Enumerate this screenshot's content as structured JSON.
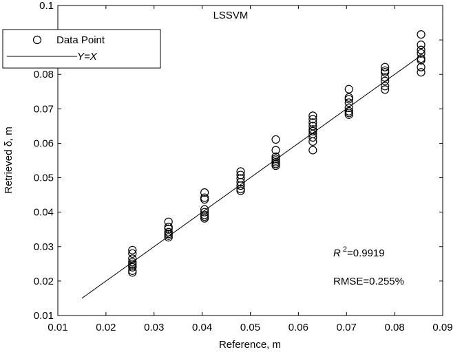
{
  "chart_data": {
    "type": "scatter",
    "title": "LSSVM",
    "xlabel": "Reference, m",
    "ylabel": "Retrieved δ, m",
    "xlim": [
      0.01,
      0.09
    ],
    "ylim": [
      0.01,
      0.1
    ],
    "x_ticks": [
      "0.01",
      "0.02",
      "0.03",
      "0.04",
      "0.05",
      "0.06",
      "0.07",
      "0.08",
      "0.09"
    ],
    "y_ticks": [
      "0.01",
      "0.02",
      "0.03",
      "0.04",
      "0.05",
      "0.06",
      "0.07",
      "0.08",
      "0.09",
      "0.1"
    ],
    "grid": false,
    "legend_position": "top-left",
    "legend": [
      {
        "label": "Data Point",
        "marker": "open-circle"
      },
      {
        "label": "Y=X",
        "marker": "line"
      }
    ],
    "series": [
      {
        "name": "Data Point",
        "points": [
          [
            0.0255,
            0.029
          ],
          [
            0.0255,
            0.028
          ],
          [
            0.0255,
            0.0265
          ],
          [
            0.0255,
            0.0255
          ],
          [
            0.0255,
            0.025
          ],
          [
            0.0255,
            0.0245
          ],
          [
            0.0255,
            0.024
          ],
          [
            0.0255,
            0.023
          ],
          [
            0.0255,
            0.0225
          ],
          [
            0.033,
            0.0372
          ],
          [
            0.033,
            0.0357
          ],
          [
            0.033,
            0.0352
          ],
          [
            0.033,
            0.0342
          ],
          [
            0.033,
            0.0337
          ],
          [
            0.033,
            0.0332
          ],
          [
            0.033,
            0.0327
          ],
          [
            0.0405,
            0.0457
          ],
          [
            0.0405,
            0.0442
          ],
          [
            0.0405,
            0.0437
          ],
          [
            0.0405,
            0.0408
          ],
          [
            0.0405,
            0.04
          ],
          [
            0.0405,
            0.0392
          ],
          [
            0.0405,
            0.0387
          ],
          [
            0.0405,
            0.0382
          ],
          [
            0.048,
            0.0518
          ],
          [
            0.048,
            0.0508
          ],
          [
            0.048,
            0.0498
          ],
          [
            0.048,
            0.0487
          ],
          [
            0.048,
            0.0477
          ],
          [
            0.048,
            0.0467
          ],
          [
            0.048,
            0.0462
          ],
          [
            0.0553,
            0.0611
          ],
          [
            0.0553,
            0.058
          ],
          [
            0.0553,
            0.0561
          ],
          [
            0.0553,
            0.0555
          ],
          [
            0.0553,
            0.055
          ],
          [
            0.0553,
            0.0545
          ],
          [
            0.0553,
            0.054
          ],
          [
            0.0553,
            0.0535
          ],
          [
            0.063,
            0.068
          ],
          [
            0.063,
            0.067
          ],
          [
            0.063,
            0.066
          ],
          [
            0.063,
            0.065
          ],
          [
            0.063,
            0.064
          ],
          [
            0.063,
            0.0635
          ],
          [
            0.063,
            0.0627
          ],
          [
            0.063,
            0.0617
          ],
          [
            0.063,
            0.0605
          ],
          [
            0.063,
            0.058
          ],
          [
            0.0705,
            0.0757
          ],
          [
            0.0705,
            0.0733
          ],
          [
            0.0705,
            0.0728
          ],
          [
            0.0705,
            0.0718
          ],
          [
            0.0705,
            0.0703
          ],
          [
            0.0705,
            0.0693
          ],
          [
            0.0705,
            0.0688
          ],
          [
            0.0705,
            0.0683
          ],
          [
            0.078,
            0.0821
          ],
          [
            0.078,
            0.0811
          ],
          [
            0.078,
            0.0806
          ],
          [
            0.078,
            0.0791
          ],
          [
            0.078,
            0.0781
          ],
          [
            0.078,
            0.0766
          ],
          [
            0.078,
            0.0756
          ],
          [
            0.0855,
            0.0916
          ],
          [
            0.0855,
            0.0886
          ],
          [
            0.0855,
            0.0871
          ],
          [
            0.0855,
            0.0861
          ],
          [
            0.0855,
            0.0846
          ],
          [
            0.0855,
            0.0841
          ],
          [
            0.0855,
            0.0821
          ],
          [
            0.0855,
            0.0806
          ]
        ]
      },
      {
        "name": "Y=X",
        "line": [
          [
            0.015,
            0.015
          ],
          [
            0.0855,
            0.0855
          ]
        ]
      }
    ],
    "annotations": {
      "r2_symbol": "R",
      "r2_exponent": "2",
      "r2_value": "=0.9919",
      "rmse": "RMSE=0.255%"
    }
  }
}
